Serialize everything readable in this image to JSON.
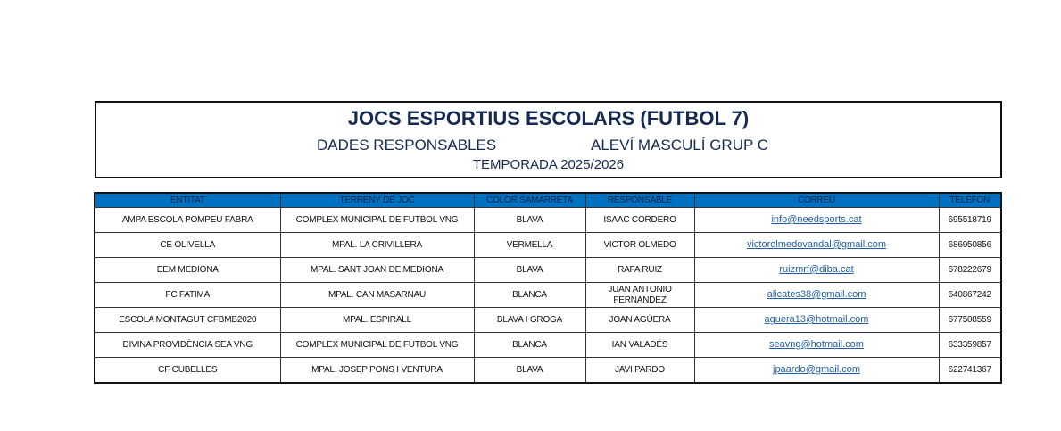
{
  "header": {
    "title": "JOCS ESPORTIUS ESCOLARS (FUTBOL 7)",
    "subtitle_left": "DADES RESPONSABLES",
    "subtitle_right": "ALEVÍ MASCULÍ GRUP C",
    "season": "TEMPORADA 2025/2026"
  },
  "table": {
    "columns": [
      "ENTITAT",
      "TERRENY DE JOC",
      "COLOR SAMARRETA",
      "RESPONSABLE",
      "CORREU",
      "TELÈFON"
    ],
    "rows": [
      [
        "AMPA ESCOLA POMPEU FABRA",
        "COMPLEX MUNICIPAL DE FUTBOL VNG",
        "BLAVA",
        "ISAAC CORDERO",
        "info@needsports.cat",
        "695518719"
      ],
      [
        "CE OLIVELLA",
        "MPAL. LA CRIVILLERA",
        "VERMELLA",
        "VICTOR OLMEDO",
        "victorolmedovandal@gmail.com",
        "686950856"
      ],
      [
        "EEM MEDIONA",
        "MPAL. SANT JOAN DE MEDIONA",
        "BLAVA",
        "RAFA RUIZ",
        "ruizmrf@diba.cat",
        "678222679"
      ],
      [
        "FC FATIMA",
        "MPAL. CAN MASARNAU",
        "BLANCA",
        "JUAN ANTONIO FERNANDEZ",
        "alicates38@gmail.com",
        "640867242"
      ],
      [
        "ESCOLA MONTAGUT CFBMB2020",
        "MPAL. ESPIRALL",
        "BLAVA I GROGA",
        "JOAN AGÜERA",
        "aguera13@hotmail.com",
        "677508559"
      ],
      [
        "DIVINA PROVIDÈNCIA SEA VNG",
        "COMPLEX MUNICIPAL DE FUTBOL VNG",
        "BLANCA",
        "IAN VALADÉS",
        "seavng@hotmail.com",
        "633359857"
      ],
      [
        "CF CUBELLES",
        "MPAL. JOSEP PONS I VENTURA",
        "BLAVA",
        "JAVI PARDO",
        "jpaardo@gmail.com",
        "622741367"
      ]
    ]
  },
  "colors": {
    "header_bg": "#0070c0",
    "title": "#142a52",
    "link": "#1f5fa8"
  }
}
